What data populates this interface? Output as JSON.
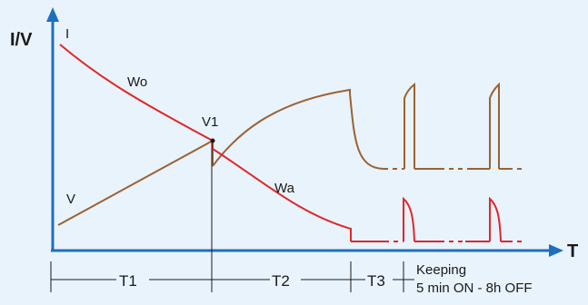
{
  "axes": {
    "y_label": "I/V",
    "x_label": "T"
  },
  "curve_labels": {
    "current": "I",
    "voltage": "V",
    "wo": "Wo",
    "wa": "Wa",
    "v1": "V1"
  },
  "phases": {
    "t1": "T1",
    "t2": "T2",
    "t3": "T3",
    "keeping_line1": "Keeping",
    "keeping_line2": "5 min ON - 8h OFF"
  },
  "colors": {
    "background": "#e9f3fb",
    "axis": "#1f6fbf",
    "current_curve": "#e0262b",
    "voltage_curve": "#9a6234",
    "guide_lines": "#1a1a1a"
  }
}
